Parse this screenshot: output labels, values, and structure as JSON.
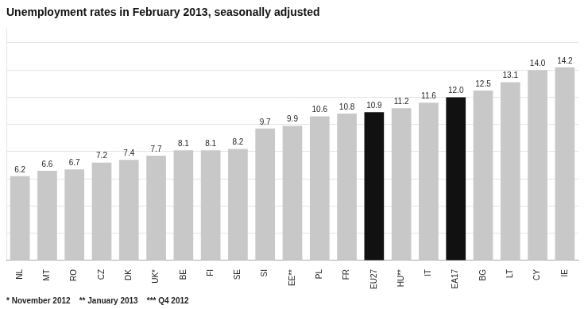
{
  "chart_data": {
    "type": "bar",
    "title": "Unemployment rates in February 2013, seasonally adjusted",
    "categories": [
      "NL",
      "MT",
      "RO",
      "CZ",
      "DK",
      "UK*",
      "BE",
      "FI",
      "SE",
      "SI",
      "EE**",
      "PL",
      "FR",
      "EU27",
      "HU**",
      "IT",
      "EA17",
      "BG",
      "LT",
      "CY",
      "IE"
    ],
    "values": [
      6.2,
      6.6,
      6.7,
      7.2,
      7.4,
      7.7,
      8.1,
      8.1,
      8.2,
      9.7,
      9.9,
      10.6,
      10.8,
      10.9,
      11.2,
      11.6,
      12.0,
      12.5,
      13.1,
      14.0,
      14.2
    ],
    "value_labels": [
      "6.2",
      "6.6",
      "6.7",
      "7.2",
      "7.4",
      "7.7",
      "8.1",
      "8.1",
      "8.2",
      "9.7",
      "9.9",
      "10.6",
      "10.8",
      "10.9",
      "11.2",
      "11.6",
      "12.0",
      "12.5",
      "13.1",
      "14.0",
      "14.2"
    ],
    "colors": [
      "#c8c8c8",
      "#c8c8c8",
      "#c8c8c8",
      "#c8c8c8",
      "#c8c8c8",
      "#c8c8c8",
      "#c8c8c8",
      "#c8c8c8",
      "#c8c8c8",
      "#c8c8c8",
      "#c8c8c8",
      "#c8c8c8",
      "#c8c8c8",
      "#111111",
      "#c8c8c8",
      "#c8c8c8",
      "#111111",
      "#c8c8c8",
      "#c8c8c8",
      "#c8c8c8",
      "#c8c8c8"
    ],
    "annotations": [
      "* November 2012    ** January 2013    *** Q4 2012"
    ],
    "ylim": [
      0,
      17
    ],
    "yticks": [
      0,
      2,
      4,
      6,
      8,
      10,
      12,
      14,
      16
    ],
    "grid": true,
    "data_labels": true,
    "tick_labels": "x"
  }
}
